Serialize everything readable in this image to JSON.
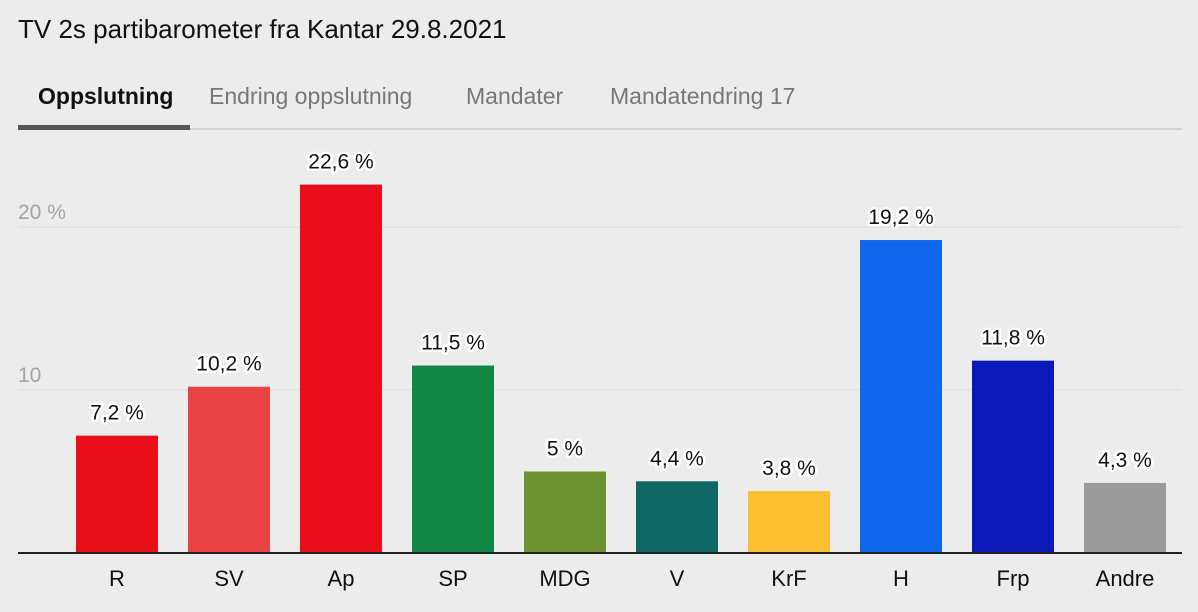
{
  "header": {
    "title": "TV 2s partibarometer fra Kantar 29.8.2021"
  },
  "tabs": [
    {
      "label": "Oppslutning",
      "active": true
    },
    {
      "label": "Endring oppslutning",
      "active": false
    },
    {
      "label": "Mandater",
      "active": false
    },
    {
      "label": "Mandatendring 17",
      "active": false
    }
  ],
  "chart_data": {
    "type": "bar",
    "title": "TV 2s partibarometer fra Kantar 29.8.2021",
    "xlabel": "",
    "ylabel": "",
    "ylim": [
      0,
      24
    ],
    "yticks": [
      {
        "value": 10,
        "label": "10"
      },
      {
        "value": 20,
        "label": "20 %"
      }
    ],
    "grid": true,
    "categories": [
      "R",
      "SV",
      "Ap",
      "SP",
      "MDG",
      "V",
      "KrF",
      "H",
      "Frp",
      "Andre"
    ],
    "values": [
      7.2,
      10.2,
      22.6,
      11.5,
      5,
      4.4,
      3.8,
      19.2,
      11.8,
      4.3
    ],
    "labels": [
      "7,2 %",
      "10,2 %",
      "22,6 %",
      "11,5 %",
      "5 %",
      "4,4 %",
      "3,8 %",
      "19,2 %",
      "11,8 %",
      "4,3 %"
    ],
    "colors": [
      "#e80e1a",
      "#e94245",
      "#ec0d1c",
      "#128745",
      "#6d9232",
      "#0e6765",
      "#fcbf32",
      "#1067ec",
      "#0a19b8",
      "#9a9a9a"
    ]
  }
}
